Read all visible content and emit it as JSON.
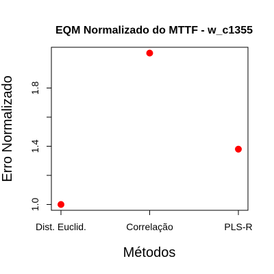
{
  "chart_data": {
    "type": "scatter",
    "title": "EQM Normalizado do MTTF - w_c1355",
    "xlabel": "Métodos",
    "ylabel": "Erro Normalizado",
    "categories": [
      "Dist. Euclid.",
      "Correlação",
      "PLS-R"
    ],
    "values": [
      1.0,
      2.04,
      1.38
    ],
    "y_ticks": [
      "1.0",
      "1.4",
      "1.8"
    ],
    "ylim": [
      0.96,
      2.08
    ],
    "point_color": "#ff0000",
    "grid": false,
    "legend": "none"
  }
}
